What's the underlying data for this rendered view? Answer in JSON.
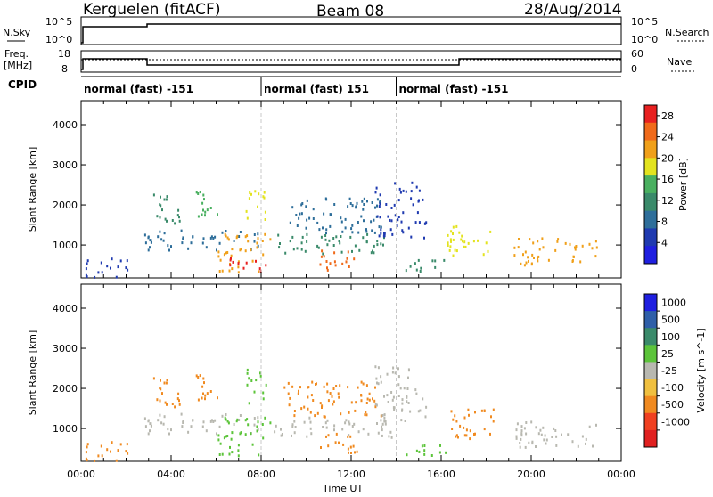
{
  "header": {
    "station": "Kerguelen (fitACF)",
    "beam": "Beam 08",
    "date": "28/Aug/2014"
  },
  "sky_panel": {
    "left_label": "N.Sky",
    "right_label": "N.Search",
    "left_ticks": [
      "10^5",
      "10^0"
    ],
    "right_ticks": [
      "10^5",
      "10^0"
    ]
  },
  "freq_panel": {
    "left_label_1": "Freq.",
    "left_label_2": "[MHz]",
    "right_label": "Nave",
    "left_ticks": [
      "18",
      "8"
    ],
    "right_ticks": [
      "60",
      "0"
    ]
  },
  "cpid": {
    "label": "CPID",
    "segments": [
      {
        "name": "normal (fast) -151",
        "start_hour": 0,
        "end_hour": 8
      },
      {
        "name": "normal (fast) 151",
        "start_hour": 8,
        "end_hour": 14
      },
      {
        "name": "normal (fast) -151",
        "start_hour": 14,
        "end_hour": 24
      }
    ]
  },
  "colors": {
    "power_scale": [
      "#1f1fe0",
      "#1f3ab0",
      "#2e6e9a",
      "#3a8a6a",
      "#4ab060",
      "#e3e31f",
      "#f0a01a",
      "#f06a1a",
      "#e82020"
    ],
    "velocity_scale": [
      "#1f1fe0",
      "#2f5fa8",
      "#3a8a6a",
      "#5cc43a",
      "#b8b8b0",
      "#f0c040",
      "#f08a20",
      "#f04020",
      "#e02020"
    ]
  },
  "chart_data": [
    {
      "type": "heatmap",
      "title": "",
      "xlabel": "Time UT",
      "ylabel": "Slant Range [km]",
      "xlim": [
        0,
        24
      ],
      "ylim": [
        180,
        4600
      ],
      "x_ticks": [
        "00:00",
        "04:00",
        "08:00",
        "12:00",
        "16:00",
        "20:00",
        "00:00"
      ],
      "y_ticks": [
        1000,
        2000,
        3000,
        4000
      ],
      "colorbar": {
        "label": "Power [dB]",
        "ticks": [
          4,
          8,
          12,
          16,
          20,
          24,
          28
        ],
        "range": [
          0,
          30
        ]
      },
      "regions": [
        {
          "t0": 0.0,
          "t1": 2.2,
          "r0": 200,
          "r1": 700,
          "value": 6
        },
        {
          "t0": 2.8,
          "t1": 8.0,
          "r0": 900,
          "r1": 1400,
          "value": 8
        },
        {
          "t0": 3.2,
          "t1": 4.4,
          "r0": 1500,
          "r1": 2400,
          "value": 10
        },
        {
          "t0": 5.0,
          "t1": 6.2,
          "r0": 1700,
          "r1": 2400,
          "value": 14
        },
        {
          "t0": 6.0,
          "t1": 8.4,
          "r0": 350,
          "r1": 1300,
          "value": 20
        },
        {
          "t0": 6.5,
          "t1": 8.2,
          "r0": 300,
          "r1": 700,
          "value": 28
        },
        {
          "t0": 7.3,
          "t1": 8.2,
          "r0": 1600,
          "r1": 2500,
          "value": 18
        },
        {
          "t0": 8.5,
          "t1": 14.0,
          "r0": 800,
          "r1": 1300,
          "value": 10
        },
        {
          "t0": 9.0,
          "t1": 13.5,
          "r0": 1300,
          "r1": 2200,
          "value": 7
        },
        {
          "t0": 10.5,
          "t1": 12.5,
          "r0": 400,
          "r1": 900,
          "value": 26
        },
        {
          "t0": 13.0,
          "t1": 15.3,
          "r0": 1200,
          "r1": 2600,
          "value": 6
        },
        {
          "t0": 14.0,
          "t1": 16.2,
          "r0": 350,
          "r1": 650,
          "value": 12
        },
        {
          "t0": 16.2,
          "t1": 18.4,
          "r0": 700,
          "r1": 1500,
          "value": 18
        },
        {
          "t0": 19.2,
          "t1": 23.0,
          "r0": 500,
          "r1": 1200,
          "value": 20
        }
      ]
    },
    {
      "type": "heatmap",
      "title": "",
      "xlabel": "Time UT",
      "ylabel": "Slant Range [km]",
      "xlim": [
        0,
        24
      ],
      "ylim": [
        180,
        4600
      ],
      "x_ticks": [
        "00:00",
        "04:00",
        "08:00",
        "12:00",
        "16:00",
        "20:00",
        "00:00"
      ],
      "y_ticks": [
        1000,
        2000,
        3000,
        4000
      ],
      "colorbar": {
        "label": "Velocity [m s^-1]",
        "ticks": [
          1000,
          500,
          100,
          25,
          -25,
          -100,
          -500,
          -1000
        ]
      },
      "regions": [
        {
          "t0": 0.0,
          "t1": 2.2,
          "r0": 200,
          "r1": 700,
          "value": -200
        },
        {
          "t0": 2.8,
          "t1": 8.0,
          "r0": 900,
          "r1": 1400,
          "value": 0
        },
        {
          "t0": 3.2,
          "t1": 4.4,
          "r0": 1500,
          "r1": 2400,
          "value": -200
        },
        {
          "t0": 5.0,
          "t1": 6.2,
          "r0": 1700,
          "r1": 2400,
          "value": -150
        },
        {
          "t0": 6.0,
          "t1": 8.4,
          "r0": 350,
          "r1": 1300,
          "value": 60
        },
        {
          "t0": 7.3,
          "t1": 8.2,
          "r0": 1600,
          "r1": 2500,
          "value": 60
        },
        {
          "t0": 8.5,
          "t1": 14.0,
          "r0": 800,
          "r1": 1300,
          "value": 0
        },
        {
          "t0": 9.0,
          "t1": 13.5,
          "r0": 1300,
          "r1": 2200,
          "value": -200
        },
        {
          "t0": 10.5,
          "t1": 12.5,
          "r0": 400,
          "r1": 900,
          "value": -200
        },
        {
          "t0": 13.0,
          "t1": 15.3,
          "r0": 1200,
          "r1": 2600,
          "value": 0
        },
        {
          "t0": 14.0,
          "t1": 16.2,
          "r0": 350,
          "r1": 650,
          "value": 60
        },
        {
          "t0": 16.2,
          "t1": 18.4,
          "r0": 700,
          "r1": 1500,
          "value": -150
        },
        {
          "t0": 19.2,
          "t1": 23.0,
          "r0": 500,
          "r1": 1200,
          "value": 0
        }
      ]
    }
  ]
}
